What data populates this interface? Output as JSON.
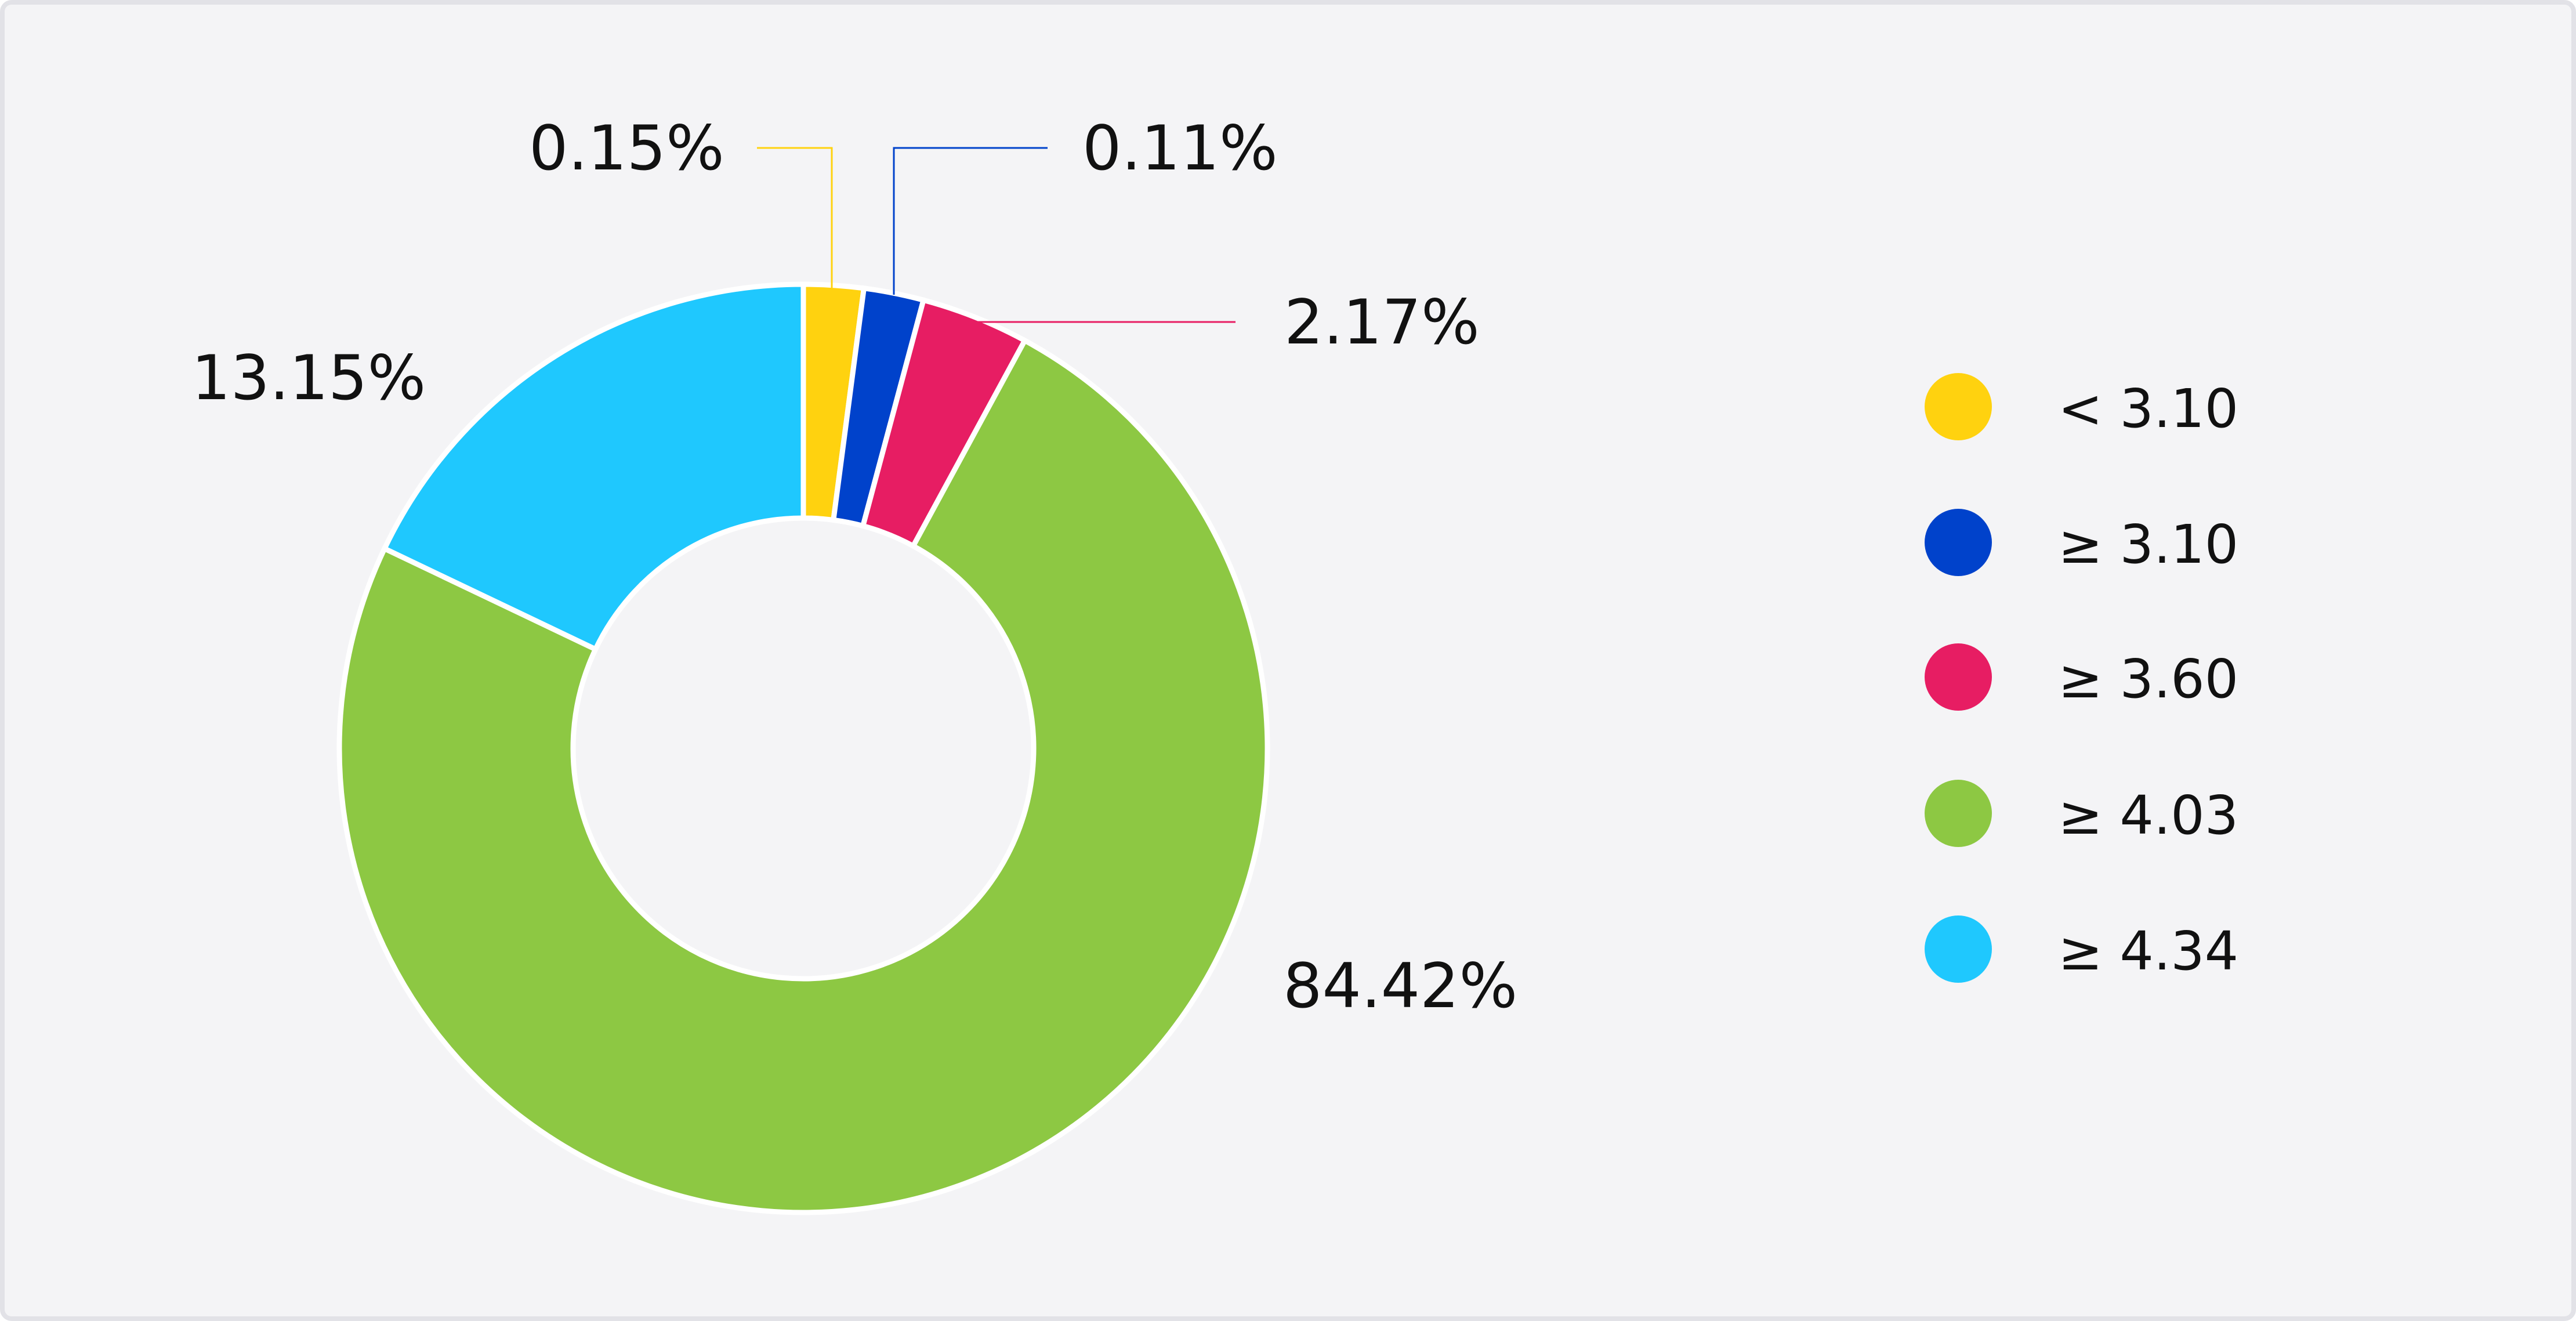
{
  "chart_data": {
    "type": "pie",
    "variant": "donut",
    "slices": [
      {
        "label": "< 3.10",
        "value": 0.15,
        "display": "0.15%",
        "color": "#FFD20F"
      },
      {
        "label": "≥ 3.10",
        "value": 0.11,
        "display": "0.11%",
        "color": "#0042CB"
      },
      {
        "label": "≥ 3.60",
        "value": 2.17,
        "display": "2.17%",
        "color": "#E71D63"
      },
      {
        "label": "≥ 4.03",
        "value": 84.42,
        "display": "84.42%",
        "color": "#8DC843"
      },
      {
        "label": "≥ 4.34",
        "value": 13.15,
        "display": "13.15%",
        "color": "#1FC8FE"
      }
    ],
    "legend_position": "right"
  },
  "colors": {
    "background": "#f4f4f6",
    "border": "#e2e2e7",
    "separator": "#ffffff"
  }
}
